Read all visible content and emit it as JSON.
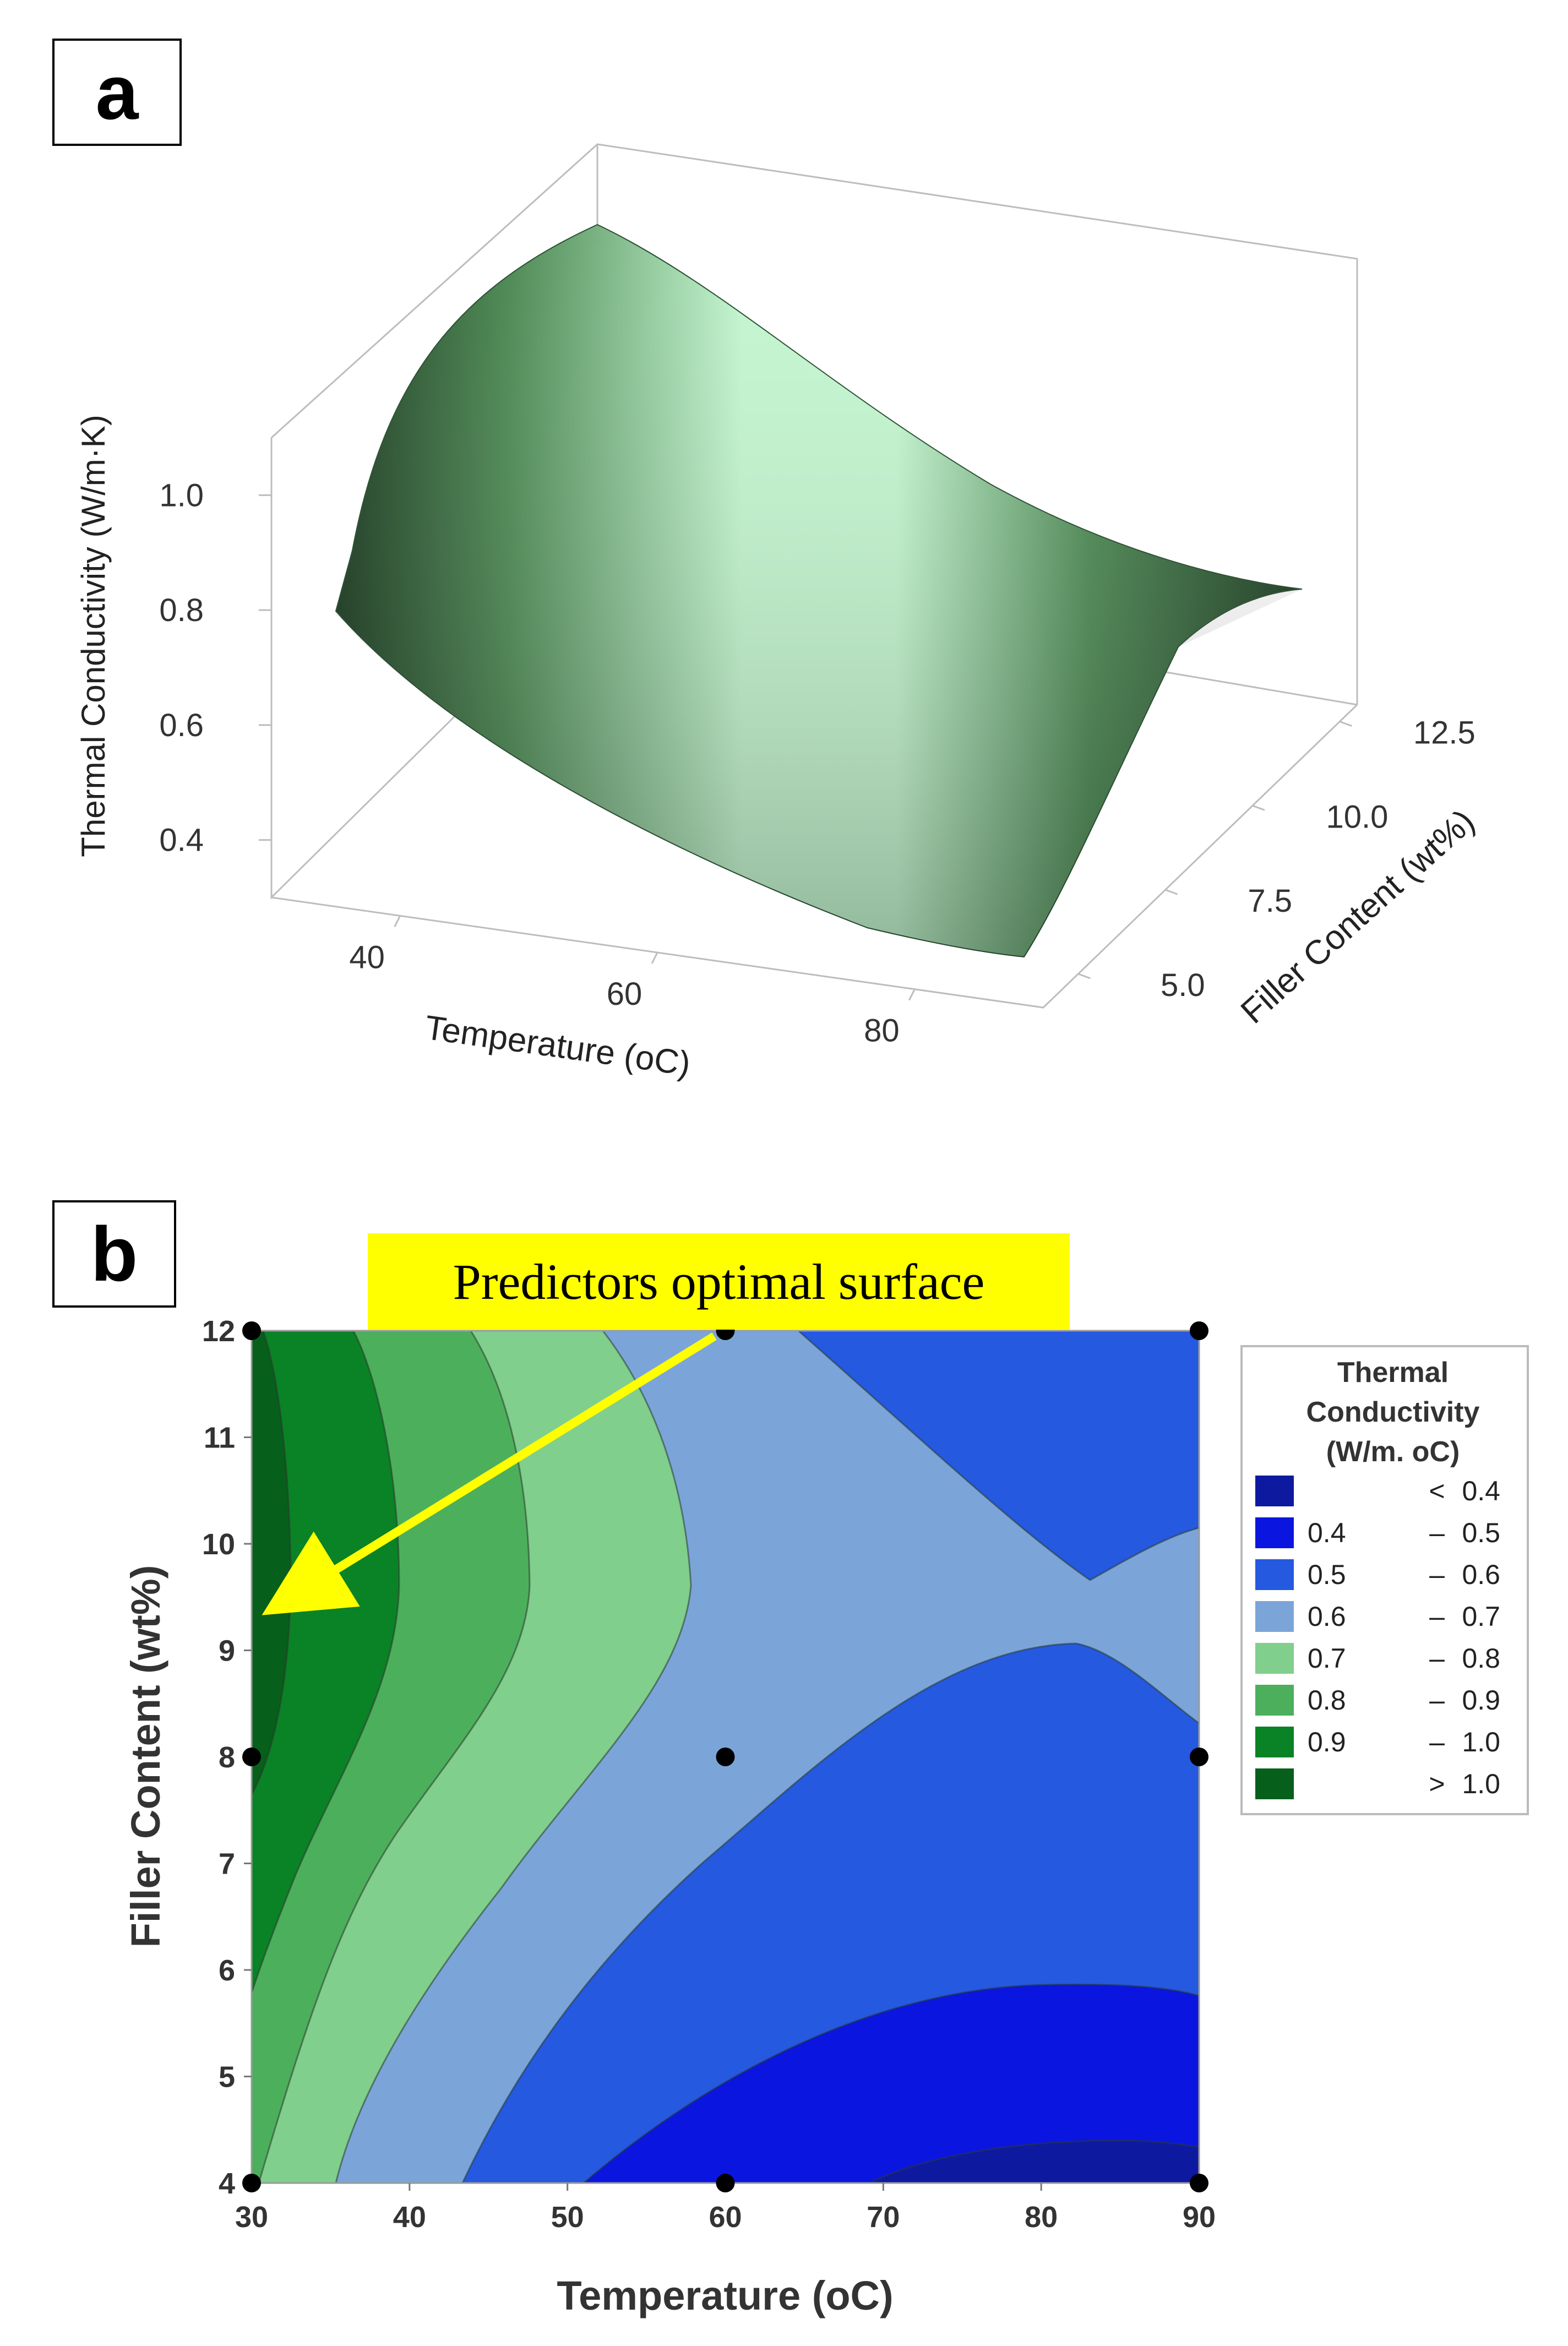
{
  "panel_a": {
    "label": "a",
    "chart_data": {
      "type": "surface",
      "zlabel": "Thermal Conductivity (W/m·K)",
      "xlabel": "Temperature (oC)",
      "ylabel": "Filler Content (wt%)",
      "z_ticks": [
        "0.4",
        "0.6",
        "0.8",
        "1.0"
      ],
      "x_ticks": [
        "40",
        "60",
        "80"
      ],
      "y_ticks": [
        "5.0",
        "7.5",
        "10.0",
        "12.5"
      ],
      "x_range": [
        30,
        90
      ],
      "y_range": [
        4,
        12
      ],
      "z_range": [
        0.3,
        1.1
      ],
      "colors": {
        "dark": "#1a3a1f",
        "mid": "#4e8a55",
        "light": "#c3f5cf"
      }
    }
  },
  "panel_b": {
    "label": "b",
    "callout": "Predictors optimal surface",
    "chart_data": {
      "type": "contour",
      "xlabel": "Temperature (oC)",
      "ylabel": "Filler Content (wt%)",
      "xlim": [
        30,
        90
      ],
      "ylim": [
        4,
        12
      ],
      "x_ticks": [
        "30",
        "40",
        "50",
        "60",
        "70",
        "80",
        "90"
      ],
      "y_ticks": [
        "4",
        "5",
        "6",
        "7",
        "8",
        "9",
        "10",
        "11",
        "12"
      ],
      "design_points": [
        [
          30,
          4
        ],
        [
          60,
          4
        ],
        [
          90,
          4
        ],
        [
          30,
          8
        ],
        [
          60,
          8
        ],
        [
          90,
          8
        ],
        [
          30,
          12
        ],
        [
          60,
          12
        ],
        [
          90,
          12
        ]
      ],
      "arrow": {
        "from": [
          60,
          12
        ],
        "to": [
          31.5,
          9.4
        ]
      },
      "legend": {
        "title_lines": [
          "Thermal",
          "Conductivity",
          "(W/m. oC)"
        ],
        "levels": [
          {
            "low": "",
            "sep": "<",
            "high": "0.4",
            "color": "#0d1aa0"
          },
          {
            "low": "0.4",
            "sep": "–",
            "high": "0.5",
            "color": "#0a16df"
          },
          {
            "low": "0.5",
            "sep": "–",
            "high": "0.6",
            "color": "#2459e0"
          },
          {
            "low": "0.6",
            "sep": "–",
            "high": "0.7",
            "color": "#7ba5d9"
          },
          {
            "low": "0.7",
            "sep": "–",
            "high": "0.8",
            "color": "#80cf8c"
          },
          {
            "low": "0.8",
            "sep": "–",
            "high": "0.9",
            "color": "#4caf5c"
          },
          {
            "low": "0.9",
            "sep": "–",
            "high": "1.0",
            "color": "#0a8226"
          },
          {
            "low": "",
            "sep": ">",
            "high": "1.0",
            "color": "#065f1b"
          }
        ]
      }
    }
  }
}
